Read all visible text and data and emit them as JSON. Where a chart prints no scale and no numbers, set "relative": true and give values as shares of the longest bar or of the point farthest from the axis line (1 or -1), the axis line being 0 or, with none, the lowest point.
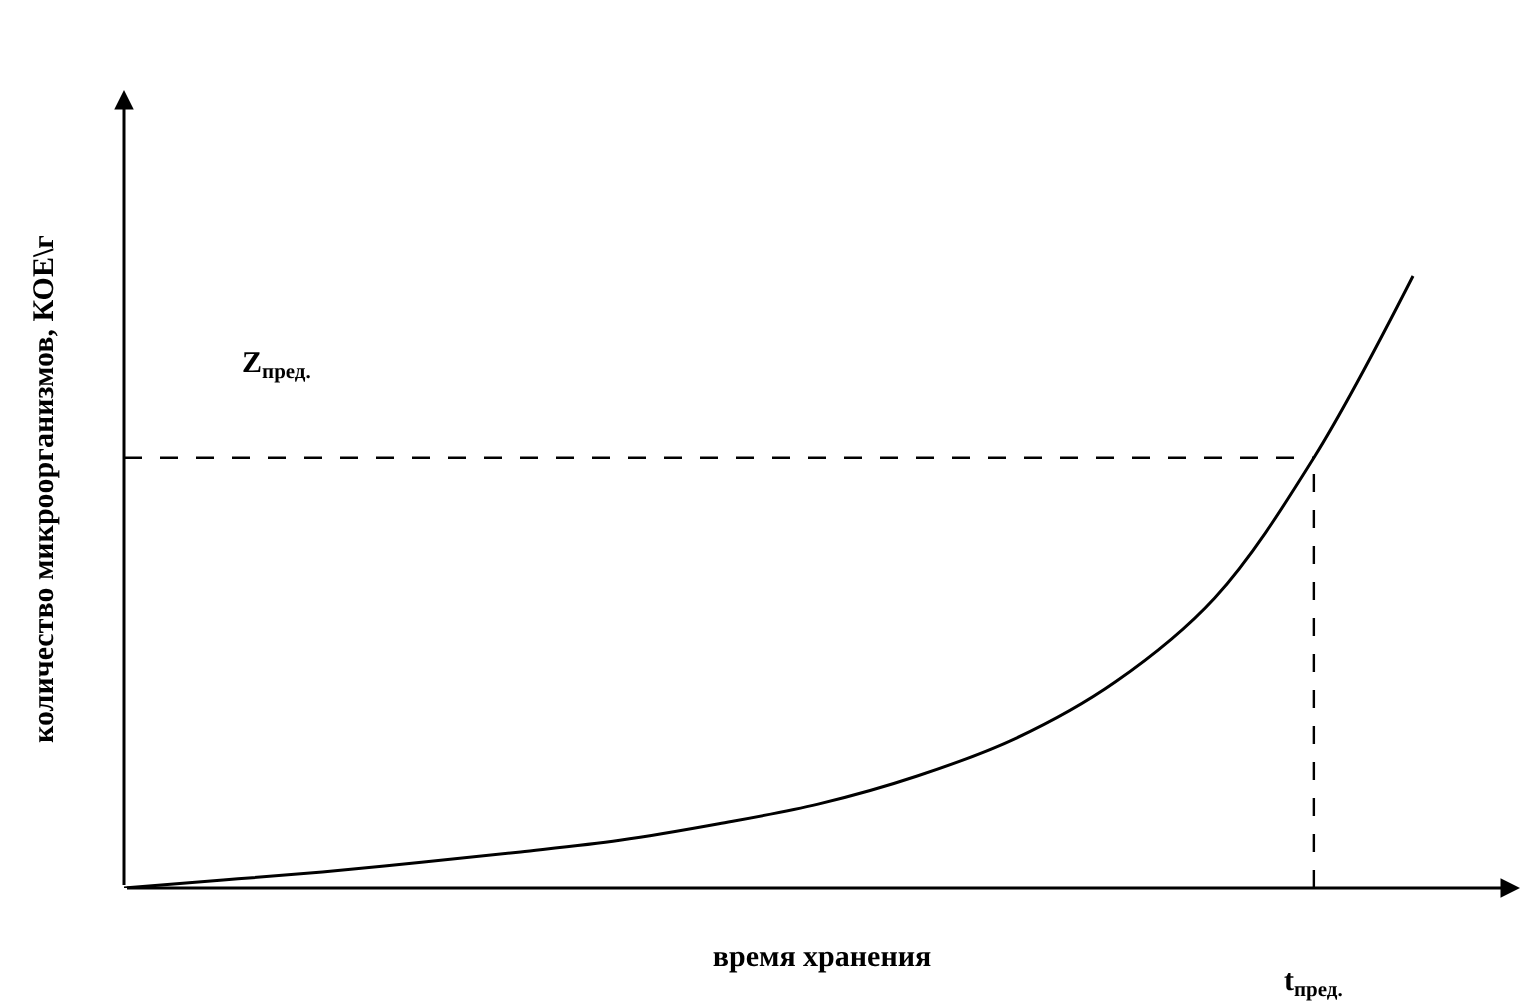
{
  "chart_data": {
    "type": "line",
    "relative": true,
    "xlabel": "время хранения",
    "ylabel": "количество микроорганизмов, КОЕ\\г",
    "categories": [
      null,
      null,
      null,
      null,
      null,
      null,
      null,
      null,
      null,
      null,
      null,
      null,
      null,
      null
    ],
    "series": [
      {
        "color": "#000000",
        "values": [
          0,
          0.013,
          0.026,
          0.042,
          0.059,
          0.078,
          0.105,
          0.137,
          0.183,
          0.245,
          0.337,
          0.474,
          0.703,
          1
        ]
      }
    ],
    "ref_lines": [
      {
        "axis": "y",
        "value": 0.703,
        "label": "Z$_{пред.}$",
        "color": "#000000",
        "line_style": "dashed"
      }
    ],
    "annotations": [
      "t$_{пред.}$"
    ],
    "legend": false,
    "marker": "none",
    "line_style": "solid"
  }
}
